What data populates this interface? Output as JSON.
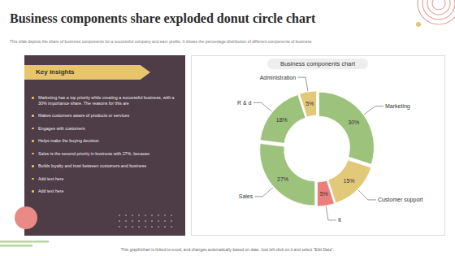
{
  "slide": {
    "title": "Business components share exploded donut circle chart",
    "subtitle": "This slide depicts the share of business components for a successful company and earn profits. It shows the percentage distribution of different components of business",
    "insights_title": "Key insights",
    "insights": [
      "Marketing has a top priority while creating a successful business, with a 30% importance share. The reasons for this are",
      "Makes customers aware of products or services",
      "Engages with customers",
      "Helps make the buying decision",
      "Sales is the second priority in business with 27%, because",
      "Builds loyalty and trust between customers and business",
      "Add text here",
      "Add text here"
    ],
    "footer": "This graph/chart is linked to excel, and changes automatically based on data. Just left click on it and select \"Edit Data\"."
  },
  "chart_data": {
    "type": "donut",
    "title": "Business components chart",
    "categories": [
      "Marketing",
      "Customer support",
      "It",
      "Sales",
      "R & d",
      "Administration"
    ],
    "values": [
      30,
      15,
      5,
      27,
      18,
      5
    ],
    "value_labels": [
      "30%",
      "15%",
      "5%",
      "27%",
      "18%",
      "5%"
    ],
    "colors": [
      "#9cc27c",
      "#e2c879",
      "#ea7f7b",
      "#9cc27c",
      "#9cc27c",
      "#e2c879"
    ],
    "data_labels": true
  }
}
